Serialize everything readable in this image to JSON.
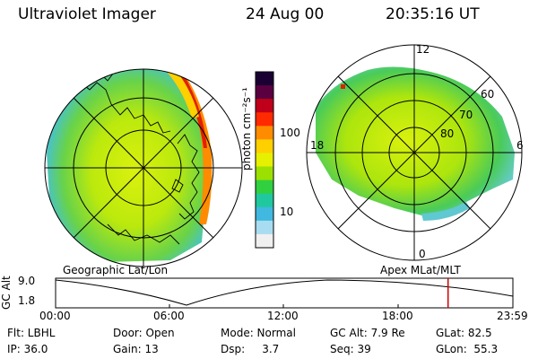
{
  "header": {
    "instrument": "Ultraviolet Imager",
    "date": "24 Aug 00",
    "time": "20:35:16 UT"
  },
  "colorbar": {
    "unit_label": "photon cm⁻²s⁻¹",
    "ticks": [
      "100",
      "10"
    ],
    "colors": [
      "#1a0033",
      "#5a0040",
      "#c0001a",
      "#ff2a00",
      "#ff8c00",
      "#ffd000",
      "#e6f000",
      "#9be000",
      "#30d040",
      "#20c8a0",
      "#40b8e0",
      "#a8dcf0",
      "#f0f0f0"
    ]
  },
  "left_map": {
    "caption": "Geographic Lat/Lon"
  },
  "right_map": {
    "caption": "Apex MLat/MLT",
    "lat_labels": [
      "60",
      "70",
      "80"
    ],
    "mlt_labels": {
      "top": "12",
      "left": "18",
      "right": "6",
      "bottom": "0"
    }
  },
  "altitude_plot": {
    "ylabel": "GC Alt",
    "yticks": [
      "9.0",
      "1.8"
    ],
    "xticks": [
      "00:00",
      "06:00",
      "12:00",
      "18:00",
      "23:59"
    ],
    "marker_time": "20:35",
    "marker_color": "#d00000"
  },
  "info": {
    "row1": {
      "flt": "Flt: LBHL",
      "door": "Door: Open",
      "mode": "Mode: Normal",
      "gc_alt": "GC Alt: 7.9 Re",
      "glat": "GLat:  82.5"
    },
    "row2": {
      "ip": "IP: 36.0",
      "gain": "Gain: 13",
      "dsp": "Dsp:     3.7",
      "seq": "Seq: 39",
      "glon": "GLon:  55.3"
    }
  }
}
